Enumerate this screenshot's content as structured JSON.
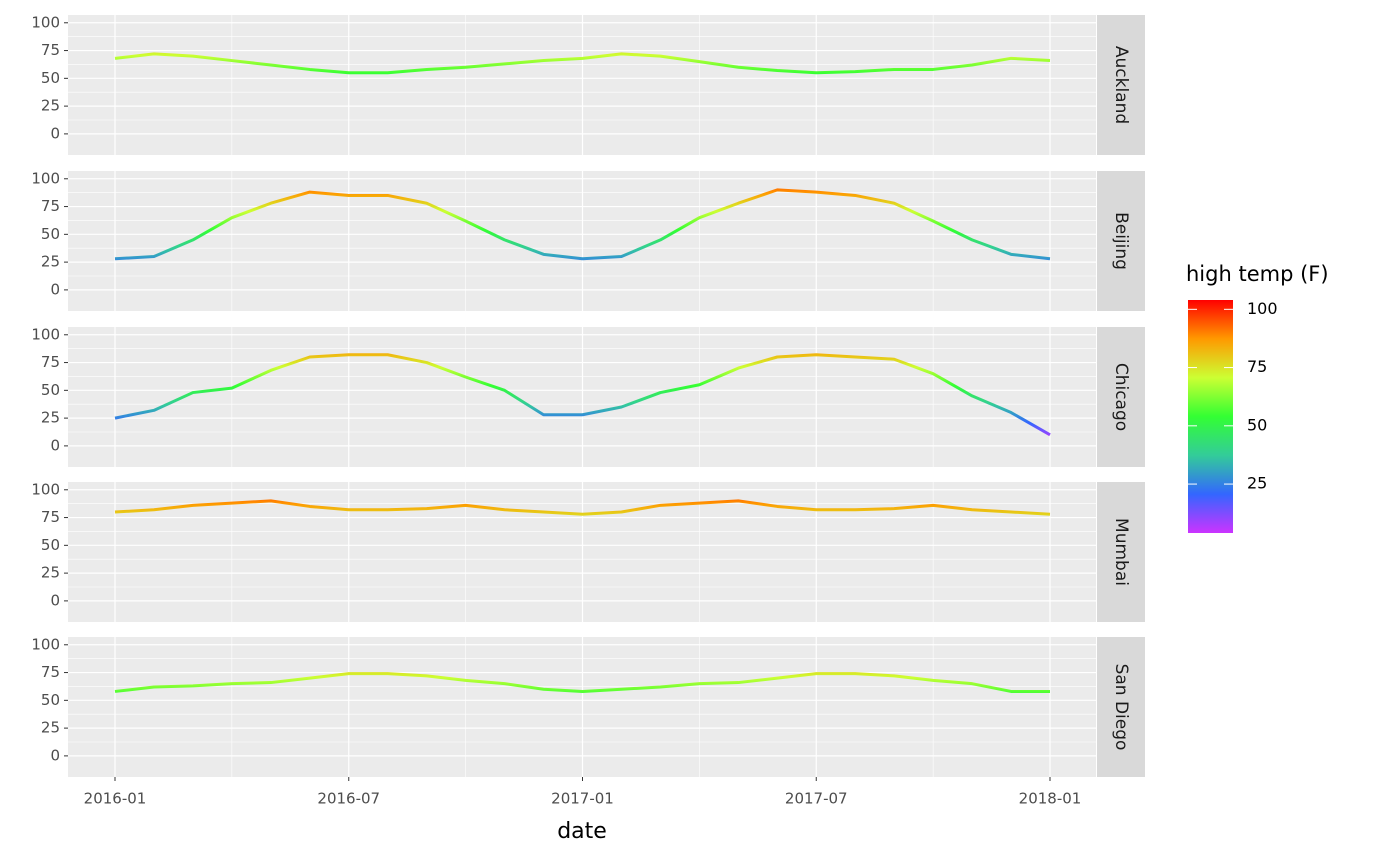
{
  "chart_data": {
    "type": "line",
    "x_label": "date",
    "x": [
      "2016-01",
      "2016-02",
      "2016-03",
      "2016-04",
      "2016-05",
      "2016-06",
      "2016-07",
      "2016-08",
      "2016-09",
      "2016-10",
      "2016-11",
      "2016-12",
      "2017-01",
      "2017-02",
      "2017-03",
      "2017-04",
      "2017-05",
      "2017-06",
      "2017-07",
      "2017-08",
      "2017-09",
      "2017-10",
      "2017-11",
      "2017-12",
      "2018-01"
    ],
    "xticks": [
      "2016-01",
      "2016-07",
      "2017-01",
      "2017-07",
      "2018-01"
    ],
    "ylim": [
      -19,
      107
    ],
    "yticks": [
      0,
      25,
      50,
      75,
      100
    ],
    "grid": true,
    "series": [
      {
        "name": "Auckland",
        "values": [
          68,
          72,
          70,
          66,
          62,
          58,
          55,
          55,
          58,
          60,
          63,
          66,
          68,
          72,
          70,
          65,
          60,
          57,
          55,
          56,
          58,
          58,
          62,
          68,
          66
        ]
      },
      {
        "name": "Beijing",
        "values": [
          28,
          30,
          45,
          65,
          78,
          88,
          85,
          85,
          78,
          62,
          45,
          32,
          28,
          30,
          45,
          65,
          78,
          90,
          88,
          85,
          78,
          62,
          45,
          32,
          28
        ]
      },
      {
        "name": "Chicago",
        "values": [
          25,
          32,
          48,
          52,
          68,
          80,
          82,
          82,
          75,
          62,
          50,
          28,
          28,
          35,
          48,
          55,
          70,
          80,
          82,
          80,
          78,
          65,
          45,
          30,
          10
        ]
      },
      {
        "name": "Mumbai",
        "values": [
          80,
          82,
          86,
          88,
          90,
          85,
          82,
          82,
          83,
          86,
          82,
          80,
          78,
          80,
          86,
          88,
          90,
          85,
          82,
          82,
          83,
          86,
          82,
          80,
          78
        ]
      },
      {
        "name": "San Diego",
        "values": [
          58,
          62,
          63,
          65,
          66,
          70,
          74,
          74,
          72,
          68,
          65,
          60,
          58,
          60,
          62,
          65,
          66,
          70,
          74,
          74,
          72,
          68,
          65,
          58,
          58
        ]
      }
    ],
    "legend": {
      "title": "high temp (F)",
      "ticks": [
        25,
        50,
        75,
        100
      ],
      "limits": [
        4,
        104
      ],
      "colors": [
        "#CC33FF",
        "#3366FF",
        "#33CC99",
        "#33FF33",
        "#CCFF33",
        "#FF9900",
        "#FF0000"
      ]
    }
  }
}
